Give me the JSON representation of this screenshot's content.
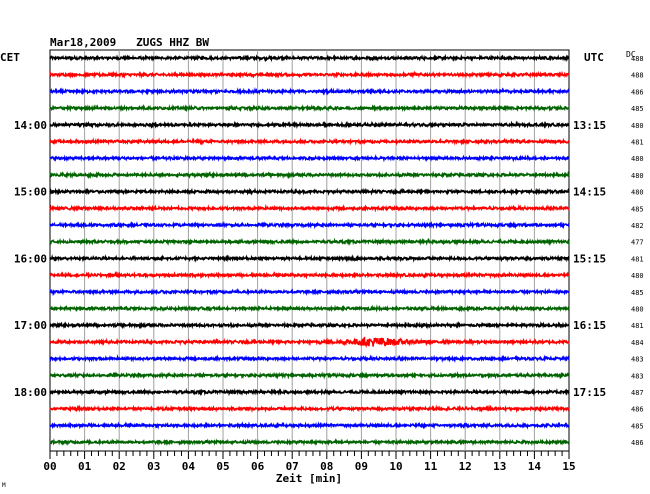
{
  "chart_data": {
    "type": "line",
    "title": "Mar18,2009   ZUGS HHZ BW",
    "left_timezone_label": "CET",
    "right_timezone_label": "UTC",
    "dc_header": "DC",
    "xlabel": "Zeit [min]",
    "xlim": [
      0,
      15
    ],
    "x_ticks": [
      "00",
      "01",
      "02",
      "03",
      "04",
      "05",
      "06",
      "07",
      "08",
      "09",
      "10",
      "11",
      "12",
      "13",
      "14",
      "15"
    ],
    "left_hour_labels": [
      {
        "row": 4,
        "label": "14:00"
      },
      {
        "row": 8,
        "label": "15:00"
      },
      {
        "row": 12,
        "label": "16:00"
      },
      {
        "row": 16,
        "label": "17:00"
      },
      {
        "row": 20,
        "label": "18:00"
      }
    ],
    "right_hour_labels": [
      {
        "row": 4,
        "label": "13:15"
      },
      {
        "row": 8,
        "label": "14:15"
      },
      {
        "row": 12,
        "label": "15:15"
      },
      {
        "row": 16,
        "label": "16:15"
      },
      {
        "row": 20,
        "label": "17:15"
      }
    ],
    "trace_colors": [
      "#000000",
      "#ff0000",
      "#0000ff",
      "#006400"
    ],
    "dc_offsets": [
      "488",
      "488",
      "486",
      "485",
      "480",
      "481",
      "480",
      "480",
      "480",
      "485",
      "482",
      "477",
      "481",
      "480",
      "485",
      "480",
      "481",
      "484",
      "483",
      "483",
      "487",
      "486",
      "485",
      "486"
    ],
    "events": [
      {
        "row": 12,
        "start_min": 8.5,
        "end_min": 8.9,
        "amplitude": 0.6
      },
      {
        "row": 17,
        "start_min": 7.7,
        "end_min": 11.0,
        "amplitude": 1.6,
        "peak_min": 9.4
      }
    ],
    "corner_mark": "M"
  }
}
